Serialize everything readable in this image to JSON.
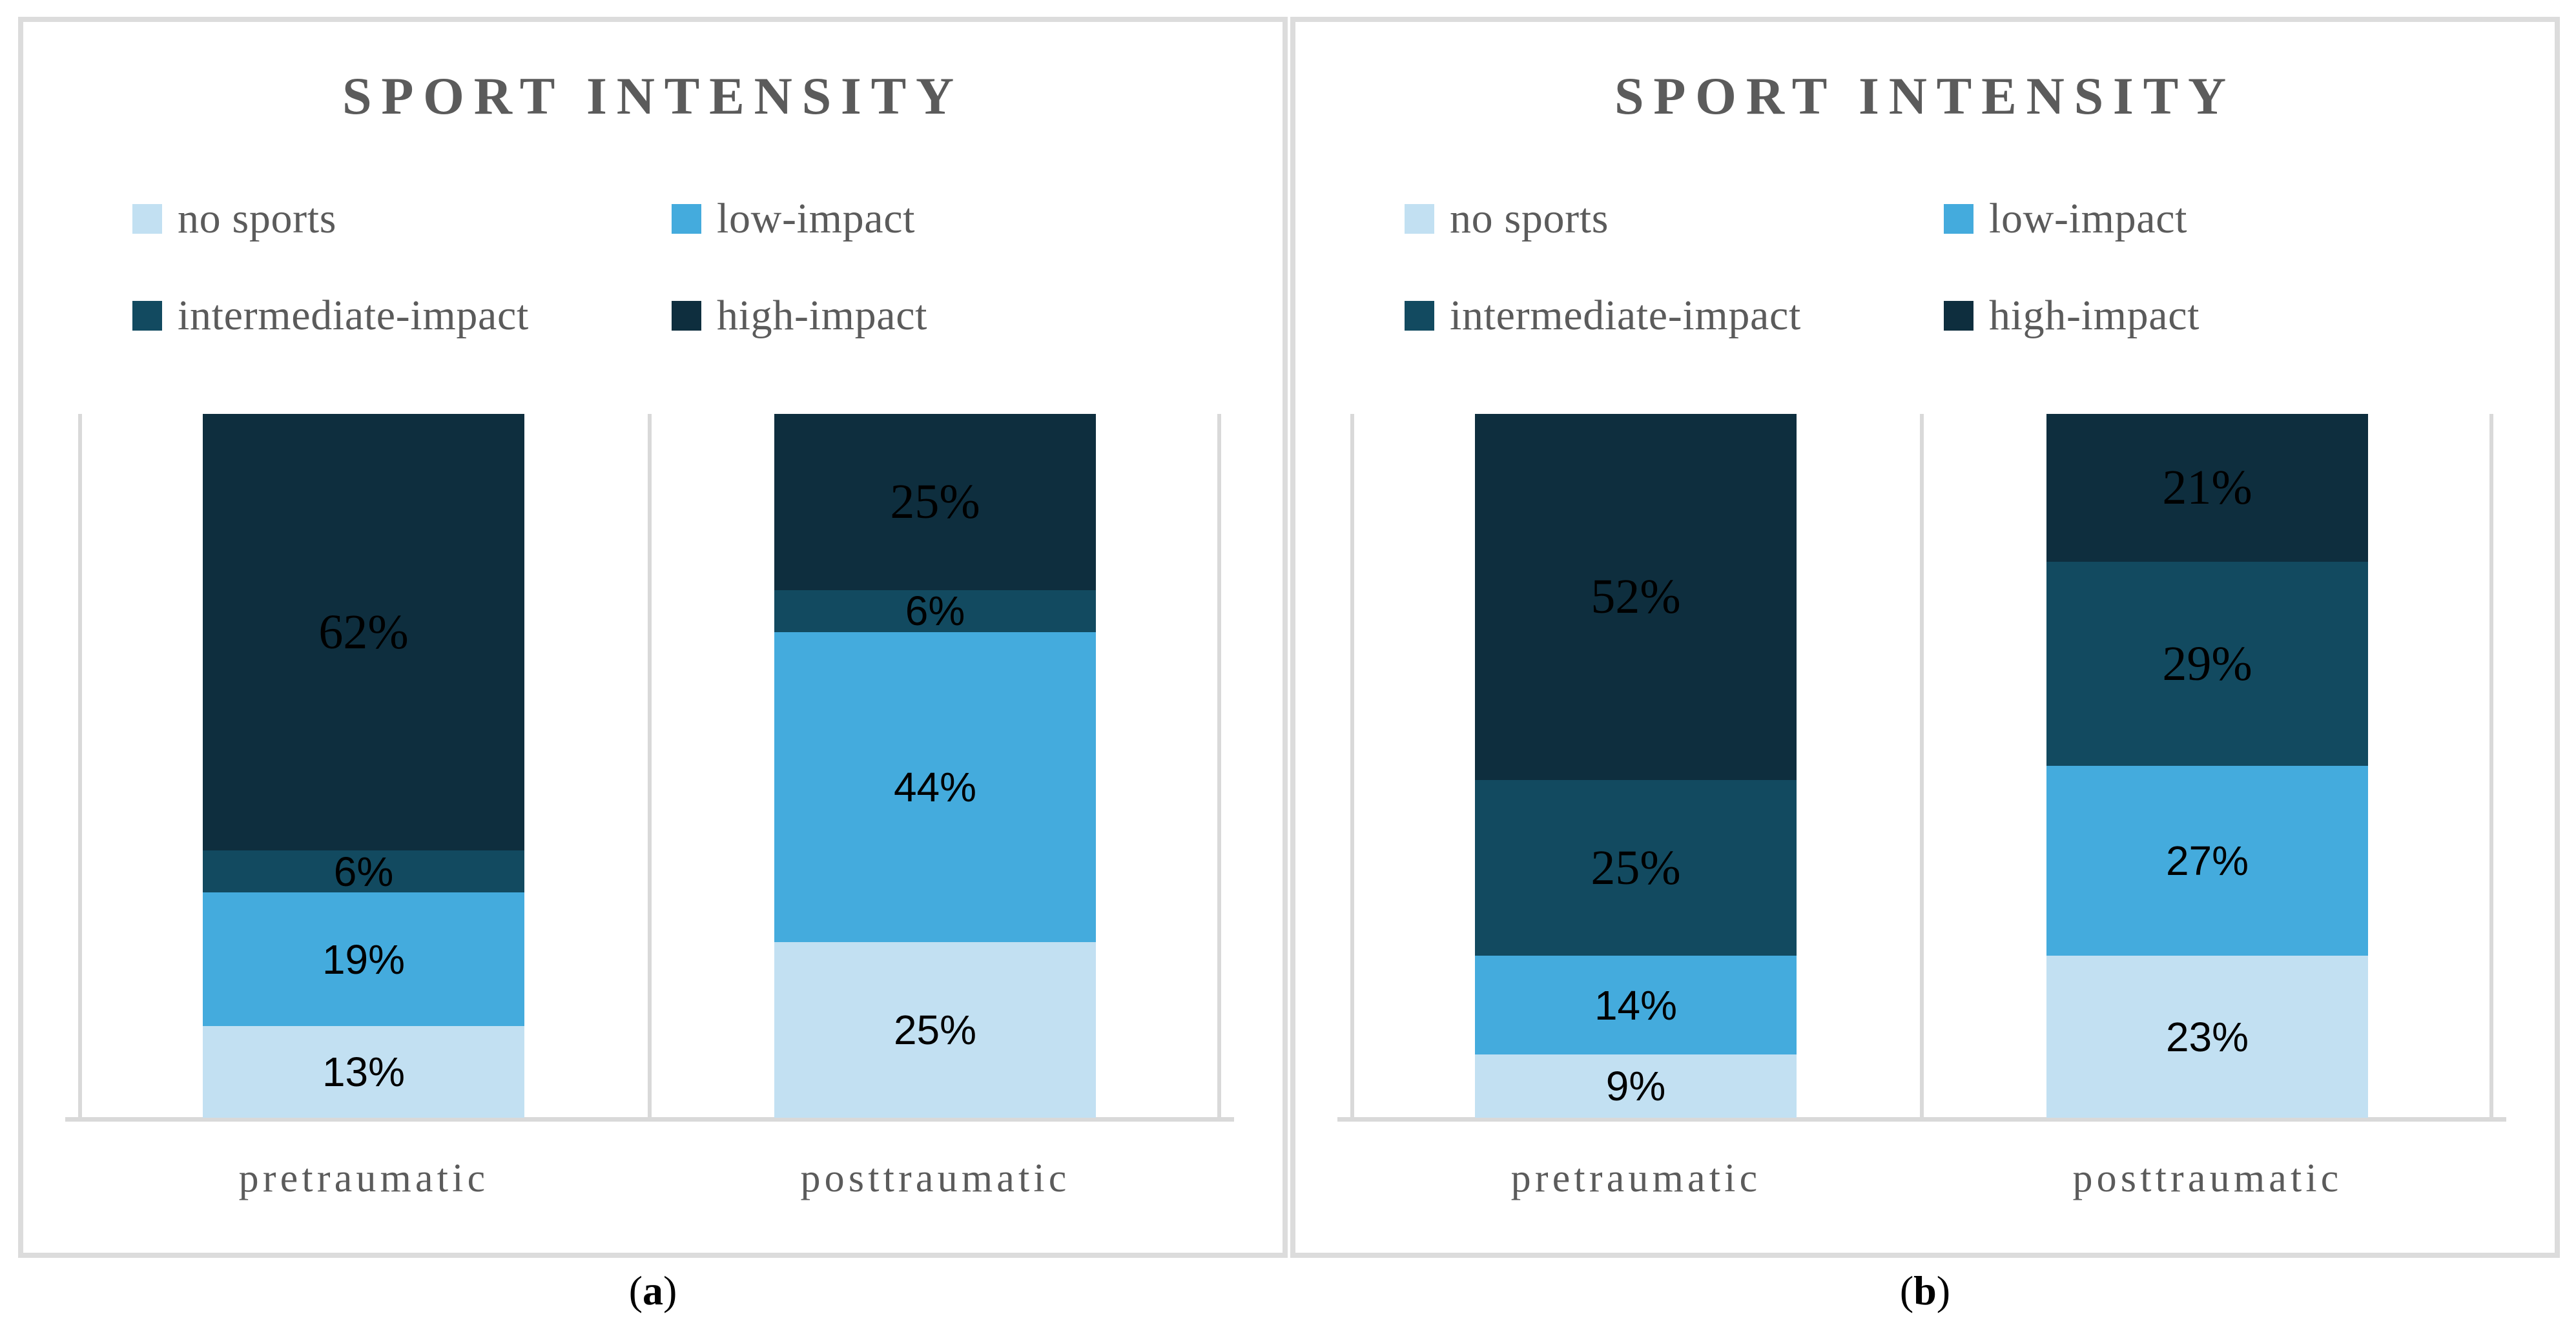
{
  "colors": {
    "no sports": "#C2E0F2",
    "low-impact": "#44ABDD",
    "intermediate-impact": "#124A60",
    "high-impact": "#0E2E3E",
    "frame": "#D9D9D9",
    "panel_border": "#DCDCDC",
    "heading_text": "#5B5B5B",
    "data_label_text": "#000000"
  },
  "figure": {
    "captions": [
      {
        "prefix": "(",
        "letter": "a",
        "suffix": ")"
      },
      {
        "prefix": "(",
        "letter": "b",
        "suffix": ")"
      }
    ]
  },
  "chart_data": [
    {
      "type": "bar",
      "stacked": true,
      "panel": "a",
      "title": "SPORT INTENSITY",
      "unit": "%",
      "ylim": [
        0,
        100
      ],
      "grid": false,
      "legend_position": "top",
      "categories": [
        "pretraumatic",
        "posttraumatic"
      ],
      "series": [
        {
          "name": "no sports",
          "values": [
            13,
            25
          ]
        },
        {
          "name": "low-impact",
          "values": [
            19,
            44
          ]
        },
        {
          "name": "intermediate-impact",
          "values": [
            6,
            6
          ]
        },
        {
          "name": "high-impact",
          "values": [
            62,
            25
          ]
        }
      ],
      "data_labels": [
        [
          "13%",
          "19%",
          "6%",
          "62%"
        ],
        [
          "25%",
          "44%",
          "6%",
          "25%"
        ]
      ],
      "label_styles": [
        [
          "sans",
          "sans",
          "sans",
          "serif"
        ],
        [
          "sans",
          "sans",
          "sans",
          "serif"
        ]
      ]
    },
    {
      "type": "bar",
      "stacked": true,
      "panel": "b",
      "title": "SPORT INTENSITY",
      "unit": "%",
      "ylim": [
        0,
        100
      ],
      "grid": false,
      "legend_position": "top",
      "categories": [
        "pretraumatic",
        "posttraumatic"
      ],
      "series": [
        {
          "name": "no sports",
          "values": [
            9,
            23
          ]
        },
        {
          "name": "low-impact",
          "values": [
            14,
            27
          ]
        },
        {
          "name": "intermediate-impact",
          "values": [
            25,
            29
          ]
        },
        {
          "name": "high-impact",
          "values": [
            52,
            21
          ]
        }
      ],
      "data_labels": [
        [
          "9%",
          "14%",
          "25%",
          "52%"
        ],
        [
          "23%",
          "27%",
          "29%",
          "21%"
        ]
      ],
      "label_styles": [
        [
          "sans",
          "sans",
          "serif",
          "serif"
        ],
        [
          "sans",
          "sans",
          "serif",
          "serif"
        ]
      ]
    }
  ]
}
